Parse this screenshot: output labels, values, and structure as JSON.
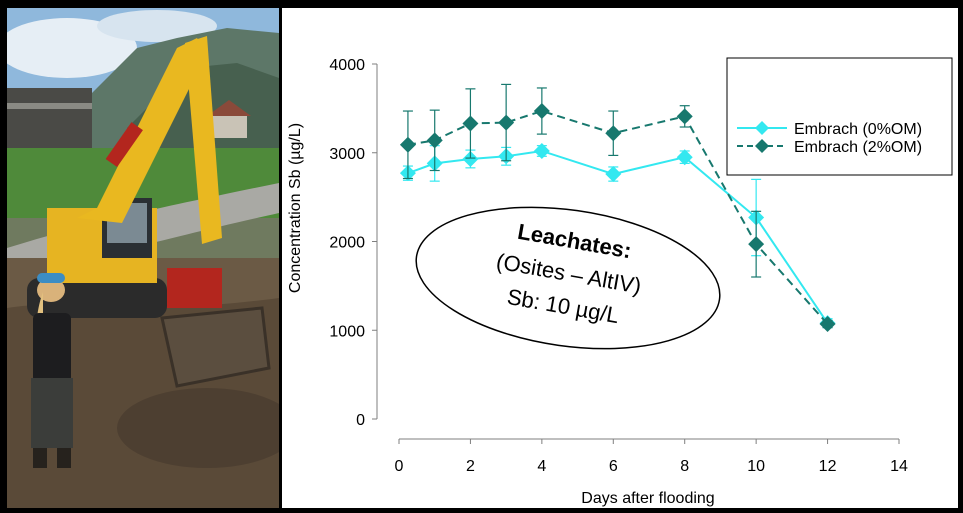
{
  "photo": {
    "alt": "Excavator on a construction site with a person in the foreground"
  },
  "chart_data": {
    "type": "line",
    "title": "",
    "xlabel": "Days after flooding",
    "ylabel": "Concentration Sb (µg/L)",
    "xlim": [
      0,
      14
    ],
    "ylim": [
      0,
      4000
    ],
    "x_ticks": [
      0,
      2,
      4,
      6,
      8,
      10,
      12,
      14
    ],
    "y_ticks": [
      0,
      1000,
      2000,
      3000,
      4000
    ],
    "grid": false,
    "legend_position": "top-right",
    "series": [
      {
        "name": "Embrach (0%OM)",
        "color": "#33E8F0",
        "line_style": "solid",
        "marker": "diamond",
        "x": [
          0.25,
          1,
          2,
          3,
          4,
          6,
          8,
          10,
          12
        ],
        "y": [
          2770,
          2880,
          2930,
          2960,
          3020,
          2760,
          2950,
          2270,
          1080
        ],
        "err": [
          80,
          200,
          100,
          100,
          60,
          80,
          70,
          430,
          50
        ]
      },
      {
        "name": "Embrach (2%OM)",
        "color": "#17786E",
        "line_style": "dashed",
        "marker": "diamond",
        "x": [
          0.25,
          1,
          2,
          3,
          4,
          6,
          8,
          10,
          12
        ],
        "y": [
          3090,
          3140,
          3330,
          3340,
          3470,
          3220,
          3410,
          1970,
          1070
        ],
        "err": [
          380,
          340,
          390,
          430,
          260,
          250,
          120,
          370,
          40
        ]
      }
    ],
    "annotation": {
      "line1": "Leachates:",
      "line2": "(Osites – AltIV)",
      "line3": "Sb: 10 µg/L"
    }
  }
}
